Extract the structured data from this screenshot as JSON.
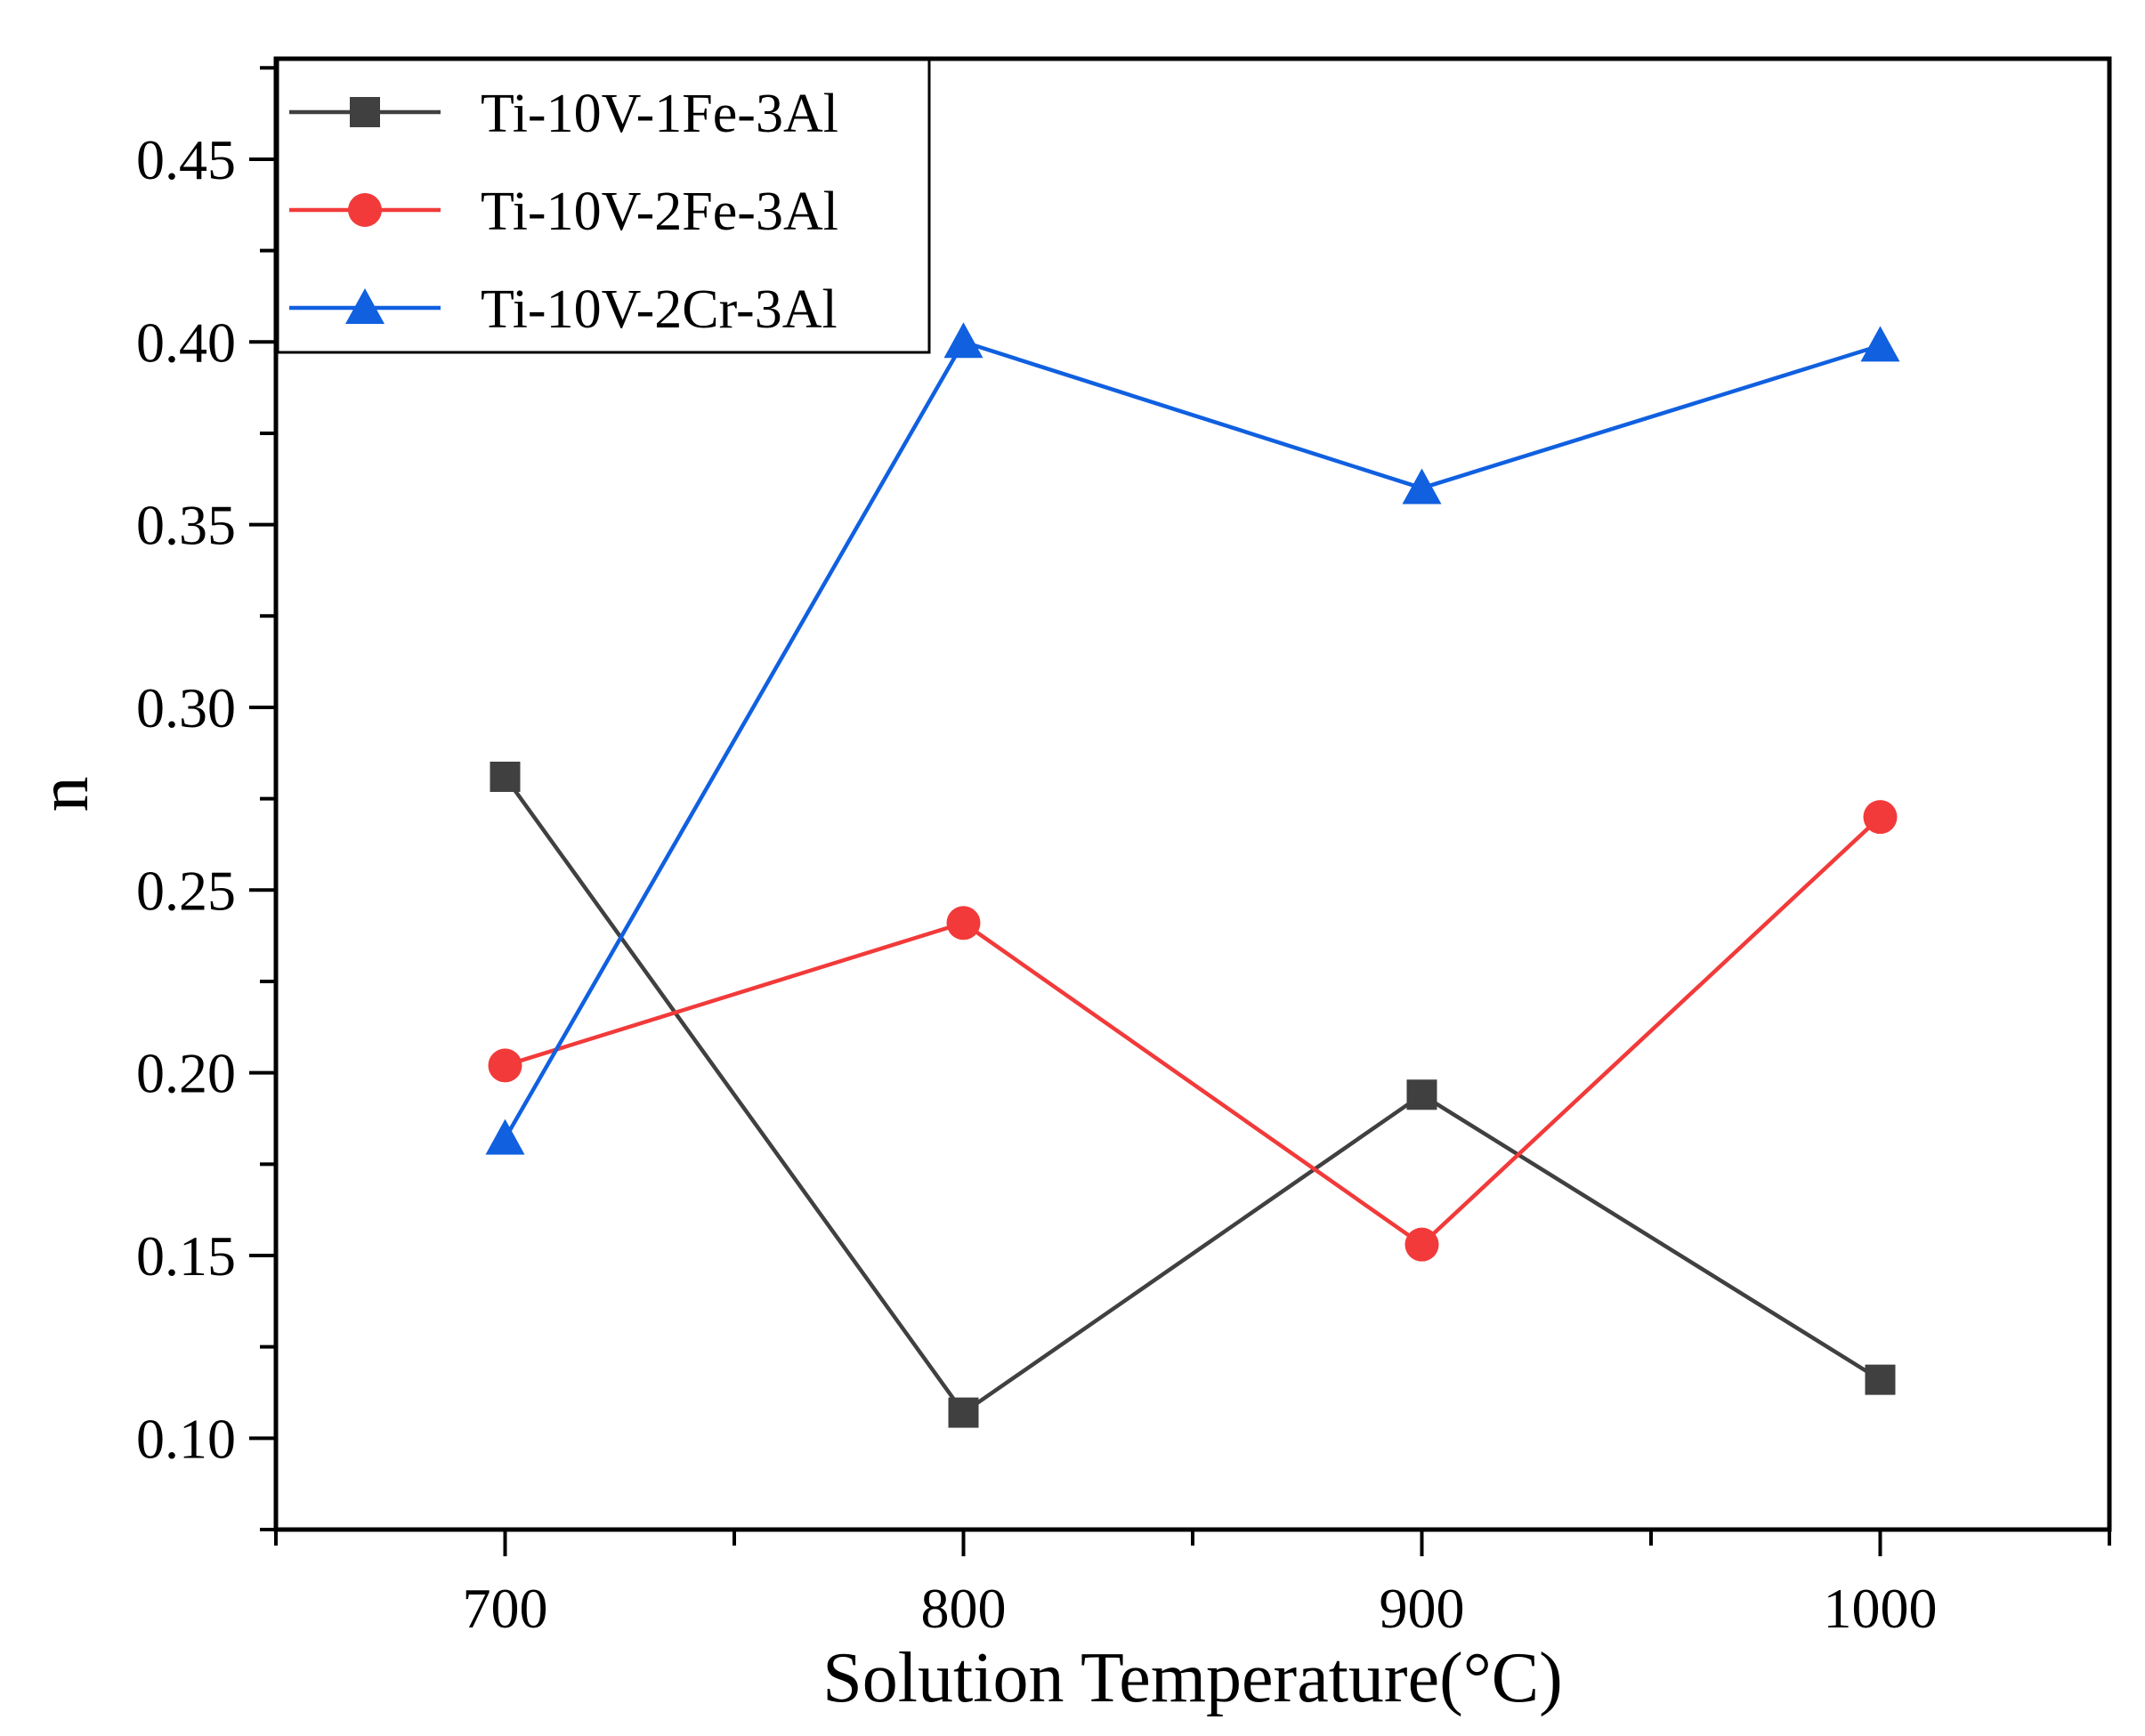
{
  "chart_data": {
    "type": "line",
    "title": "",
    "xlabel": "Solution Temperature(°C)",
    "ylabel": "n",
    "x": [
      700,
      800,
      900,
      1000
    ],
    "xlim": [
      650,
      1050
    ],
    "ylim": [
      0.075,
      0.4775
    ],
    "x_ticks": [
      700,
      800,
      900,
      1000
    ],
    "x_tick_labels": [
      "700",
      "800",
      "900",
      "1000"
    ],
    "y_ticks": [
      0.1,
      0.15,
      0.2,
      0.25,
      0.3,
      0.35,
      0.4,
      0.45
    ],
    "y_tick_labels": [
      "0.10",
      "0.15",
      "0.20",
      "0.25",
      "0.30",
      "0.35",
      "0.40",
      "0.45"
    ],
    "grid": false,
    "legend_position": "top-left",
    "series": [
      {
        "name": "Ti-10V-1Fe-3Al",
        "color": "#404040",
        "marker": "square",
        "values": [
          0.281,
          0.107,
          0.194,
          0.116
        ]
      },
      {
        "name": "Ti-10V-2Fe-3Al",
        "color": "#f23a3a",
        "marker": "circle",
        "values": [
          0.202,
          0.241,
          0.153,
          0.27
        ]
      },
      {
        "name": "Ti-10V-2Cr-3Al",
        "color": "#1060e0",
        "marker": "triangle",
        "values": [
          0.182,
          0.4,
          0.36,
          0.399
        ]
      }
    ]
  }
}
